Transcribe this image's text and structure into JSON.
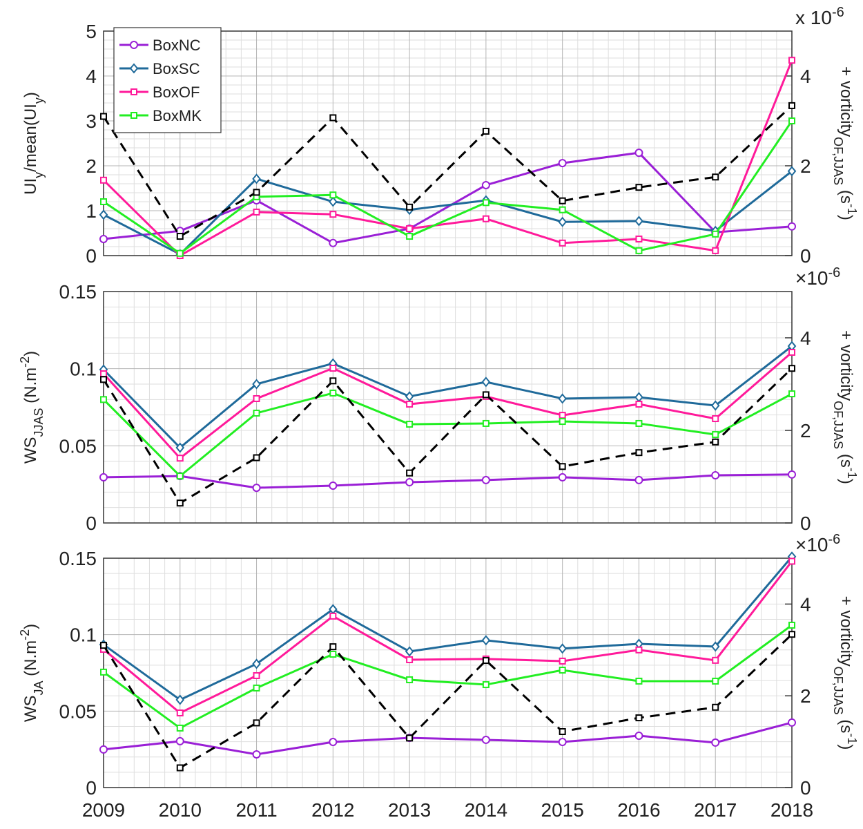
{
  "chart_data": [
    {
      "type": "line",
      "ylabel": [
        {
          "text": "UI",
          "shift": "normal"
        },
        {
          "text": "y",
          "shift": "sub"
        },
        {
          "text": "/mean(UI",
          "shift": "normal"
        },
        {
          "text": "y",
          "shift": "sub"
        },
        {
          "text": ")",
          "shift": "normal"
        }
      ],
      "y2label": [
        {
          "text": "+ vorticity",
          "shift": "normal"
        },
        {
          "text": "OF,JJAS",
          "shift": "sub"
        },
        {
          "text": " (s",
          "shift": "normal"
        },
        {
          "text": "-1",
          "shift": "super"
        },
        {
          "text": ")",
          "shift": "normal"
        }
      ],
      "y2_multiplier": {
        "base": "x 10",
        "exponent": "-6"
      },
      "x": [
        2009,
        2010,
        2011,
        2012,
        2013,
        2014,
        2015,
        2016,
        2017,
        2018
      ],
      "xlim": [
        2009,
        2018
      ],
      "xticks": [
        2009,
        2010,
        2011,
        2012,
        2013,
        2014,
        2015,
        2016,
        2017,
        2018
      ],
      "ylim": [
        0,
        5
      ],
      "yticks": [
        0,
        1,
        2,
        3,
        4,
        5
      ],
      "y2lim": [
        0,
        5
      ],
      "y2ticks": [
        0,
        2,
        4
      ],
      "grid": true,
      "minor_grid": true,
      "legend": "upper left",
      "series": [
        {
          "name": "BoxNC",
          "color": "#9a1fd6",
          "marker": "circle",
          "values": [
            0.37,
            0.55,
            1.23,
            0.28,
            0.6,
            1.57,
            2.06,
            2.29,
            0.52,
            0.65
          ]
        },
        {
          "name": "BoxSC",
          "color": "#1f6a9a",
          "marker": "diamond",
          "values": [
            0.91,
            0.03,
            1.71,
            1.2,
            1.02,
            1.23,
            0.75,
            0.77,
            0.55,
            1.88
          ]
        },
        {
          "name": "BoxOF",
          "color": "#ff1a9a",
          "marker": "square",
          "values": [
            1.68,
            0.0,
            0.97,
            0.92,
            0.6,
            0.82,
            0.28,
            0.37,
            0.11,
            4.35
          ]
        },
        {
          "name": "BoxMK",
          "color": "#22ee22",
          "marker": "square",
          "values": [
            1.2,
            0.05,
            1.31,
            1.35,
            0.43,
            1.18,
            1.02,
            0.11,
            0.48,
            3.0
          ]
        },
        {
          "color": "#000000",
          "marker": "square",
          "dash": true,
          "axis": "y2",
          "values": [
            3.1,
            0.43,
            1.41,
            3.07,
            1.08,
            2.77,
            1.22,
            1.52,
            1.75,
            3.34
          ]
        }
      ]
    },
    {
      "type": "line",
      "ylabel": [
        {
          "text": "WS",
          "shift": "normal"
        },
        {
          "text": "JJAS",
          "shift": "sub"
        },
        {
          "text": " (N.m",
          "shift": "normal"
        },
        {
          "text": "-2",
          "shift": "super"
        },
        {
          "text": ")",
          "shift": "normal"
        }
      ],
      "y2label": [
        {
          "text": "+ vorticity",
          "shift": "normal"
        },
        {
          "text": "OF,JJAS",
          "shift": "sub"
        },
        {
          "text": " (s",
          "shift": "normal"
        },
        {
          "text": "-1",
          "shift": "super"
        },
        {
          "text": ")",
          "shift": "normal"
        }
      ],
      "y2_multiplier": {
        "base": "×10",
        "exponent": "-6"
      },
      "x": [
        2009,
        2010,
        2011,
        2012,
        2013,
        2014,
        2015,
        2016,
        2017,
        2018
      ],
      "xlim": [
        2009,
        2018
      ],
      "xticks": [
        2009,
        2010,
        2011,
        2012,
        2013,
        2014,
        2015,
        2016,
        2017,
        2018
      ],
      "ylim": [
        0,
        0.15
      ],
      "yticks": [
        0,
        0.05,
        0.1,
        0.15
      ],
      "y2lim": [
        0,
        5
      ],
      "y2ticks": [
        0,
        2,
        4
      ],
      "grid": true,
      "minor_grid": true,
      "series": [
        {
          "color": "#9a1fd6",
          "marker": "circle",
          "values": [
            0.0296,
            0.0304,
            0.0228,
            0.0242,
            0.0264,
            0.0278,
            0.0296,
            0.0278,
            0.0309,
            0.0314
          ]
        },
        {
          "color": "#1f6a9a",
          "marker": "diamond",
          "values": [
            0.0994,
            0.0488,
            0.09,
            0.1034,
            0.082,
            0.0914,
            0.0806,
            0.0815,
            0.0761,
            0.1146
          ]
        },
        {
          "color": "#ff1a9a",
          "marker": "square",
          "values": [
            0.0967,
            0.042,
            0.0806,
            0.1003,
            0.077,
            0.082,
            0.0698,
            0.077,
            0.0676,
            0.1106
          ]
        },
        {
          "color": "#22ee22",
          "marker": "square",
          "values": [
            0.08,
            0.0304,
            0.0712,
            0.0842,
            0.064,
            0.0645,
            0.0658,
            0.0645,
            0.0573,
            0.0837
          ]
        },
        {
          "color": "#000000",
          "marker": "square",
          "dash": true,
          "axis": "y2",
          "values": [
            3.1,
            0.43,
            1.41,
            3.07,
            1.08,
            2.77,
            1.22,
            1.52,
            1.75,
            3.34
          ]
        }
      ]
    },
    {
      "type": "line",
      "ylabel": [
        {
          "text": "WS",
          "shift": "normal"
        },
        {
          "text": "JA",
          "shift": "sub"
        },
        {
          "text": " (N.m",
          "shift": "normal"
        },
        {
          "text": "-2",
          "shift": "super"
        },
        {
          "text": ")",
          "shift": "normal"
        }
      ],
      "y2label": [
        {
          "text": "+ vorticity",
          "shift": "normal"
        },
        {
          "text": "OF,JJAS",
          "shift": "sub"
        },
        {
          "text": " (s",
          "shift": "normal"
        },
        {
          "text": "-1",
          "shift": "super"
        },
        {
          "text": ")",
          "shift": "normal"
        }
      ],
      "y2_multiplier": {
        "base": "×10",
        "exponent": "-6"
      },
      "x": [
        2009,
        2010,
        2011,
        2012,
        2013,
        2014,
        2015,
        2016,
        2017,
        2018
      ],
      "xlim": [
        2009,
        2018
      ],
      "xticks": [
        2009,
        2010,
        2011,
        2012,
        2013,
        2014,
        2015,
        2016,
        2017,
        2018
      ],
      "ylim": [
        0,
        0.15
      ],
      "yticks": [
        0,
        0.05,
        0.1,
        0.15
      ],
      "y2lim": [
        0,
        5
      ],
      "y2ticks": [
        0,
        2,
        4
      ],
      "grid": true,
      "minor_grid": true,
      "xtick_labels": true,
      "series": [
        {
          "color": "#9a1fd6",
          "marker": "circle",
          "values": [
            0.0249,
            0.0303,
            0.0217,
            0.0298,
            0.0325,
            0.0312,
            0.0298,
            0.0339,
            0.0294,
            0.0425
          ]
        },
        {
          "color": "#1f6a9a",
          "marker": "diamond",
          "values": [
            0.0935,
            0.0574,
            0.0809,
            0.1166,
            0.089,
            0.0963,
            0.0909,
            0.094,
            0.0922,
            0.151
          ]
        },
        {
          "color": "#ff1a9a",
          "marker": "square",
          "values": [
            0.0904,
            0.0488,
            0.0732,
            0.1121,
            0.0836,
            0.0841,
            0.0827,
            0.09,
            0.0832,
            0.148
          ]
        },
        {
          "color": "#22ee22",
          "marker": "square",
          "values": [
            0.0755,
            0.0389,
            0.0651,
            0.0872,
            0.0705,
            0.0673,
            0.0768,
            0.0696,
            0.0696,
            0.1062
          ]
        },
        {
          "color": "#000000",
          "marker": "square",
          "dash": true,
          "axis": "y2",
          "values": [
            3.1,
            0.43,
            1.41,
            3.07,
            1.08,
            2.77,
            1.22,
            1.52,
            1.75,
            3.34
          ]
        }
      ]
    }
  ]
}
